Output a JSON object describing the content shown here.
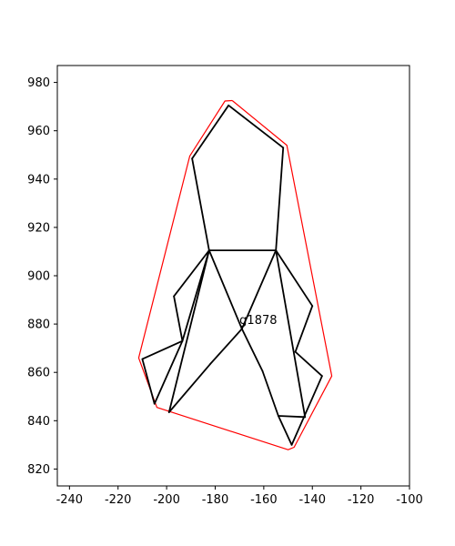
{
  "chart_data": {
    "type": "line",
    "title": "",
    "xlabel": "",
    "ylabel": "",
    "xlim": [
      -245,
      -100
    ],
    "ylim": [
      813,
      987
    ],
    "x_ticks": [
      -240,
      -220,
      -200,
      -180,
      -160,
      -140,
      -120,
      -100
    ],
    "y_ticks": [
      820,
      840,
      860,
      880,
      900,
      920,
      940,
      960,
      980
    ],
    "grid": false,
    "colors": {
      "hull": "#ff0000",
      "edges": "#000000",
      "frame": "#000000"
    },
    "hull": [
      [
        -173,
        972.5
      ],
      [
        -150.5,
        954
      ],
      [
        -132,
        858.5
      ],
      [
        -147.5,
        829
      ],
      [
        -150,
        828
      ],
      [
        -204,
        845.5
      ],
      [
        -211.5,
        866
      ],
      [
        -190.5,
        949.5
      ],
      [
        -176,
        972.3
      ],
      [
        -173,
        972.5
      ]
    ],
    "segments": [
      [
        [
          -189.5,
          948.5
        ],
        [
          -174.5,
          970.5
        ]
      ],
      [
        [
          -174.5,
          970.5
        ],
        [
          -152,
          953
        ]
      ],
      [
        [
          -152,
          953
        ],
        [
          -155,
          910.5
        ]
      ],
      [
        [
          -189.5,
          948.5
        ],
        [
          -182.5,
          910.5
        ]
      ],
      [
        [
          -182.5,
          910.5
        ],
        [
          -155,
          910.5
        ]
      ],
      [
        [
          -182.5,
          910.5
        ],
        [
          -197,
          891.5
        ]
      ],
      [
        [
          -197,
          891.5
        ],
        [
          -193.5,
          873
        ]
      ],
      [
        [
          -193.5,
          873
        ],
        [
          -182.5,
          910.5
        ]
      ],
      [
        [
          -182.5,
          910.5
        ],
        [
          -199,
          843.5
        ]
      ],
      [
        [
          -199,
          843.5
        ],
        [
          -182,
          863.5
        ]
      ],
      [
        [
          -182,
          863.5
        ],
        [
          -169,
          878
        ]
      ],
      [
        [
          -182.5,
          910.5
        ],
        [
          -169,
          878
        ]
      ],
      [
        [
          -169,
          878
        ],
        [
          -155,
          910.5
        ]
      ],
      [
        [
          -169,
          878
        ],
        [
          -160.5,
          860.5
        ]
      ],
      [
        [
          -160.5,
          860.5
        ],
        [
          -154,
          842
        ]
      ],
      [
        [
          -154,
          842
        ],
        [
          -143,
          841.5
        ]
      ],
      [
        [
          -155,
          910.5
        ],
        [
          -140,
          887.5
        ]
      ],
      [
        [
          -140,
          887.5
        ],
        [
          -147,
          868.5
        ]
      ],
      [
        [
          -155,
          910.5
        ],
        [
          -143,
          841.5
        ]
      ],
      [
        [
          -147,
          868.5
        ],
        [
          -136,
          858.5
        ]
      ],
      [
        [
          -136,
          858.5
        ],
        [
          -148.5,
          830
        ]
      ],
      [
        [
          -148.5,
          830
        ],
        [
          -154,
          842
        ]
      ],
      [
        [
          -193.5,
          873
        ],
        [
          -210,
          865.5
        ]
      ],
      [
        [
          -210,
          865.5
        ],
        [
          -205,
          847
        ]
      ],
      [
        [
          -205,
          847
        ],
        [
          -193.5,
          873
        ]
      ]
    ],
    "annotations": [
      {
        "text": "g1878",
        "x": -170,
        "y": 880
      }
    ]
  }
}
